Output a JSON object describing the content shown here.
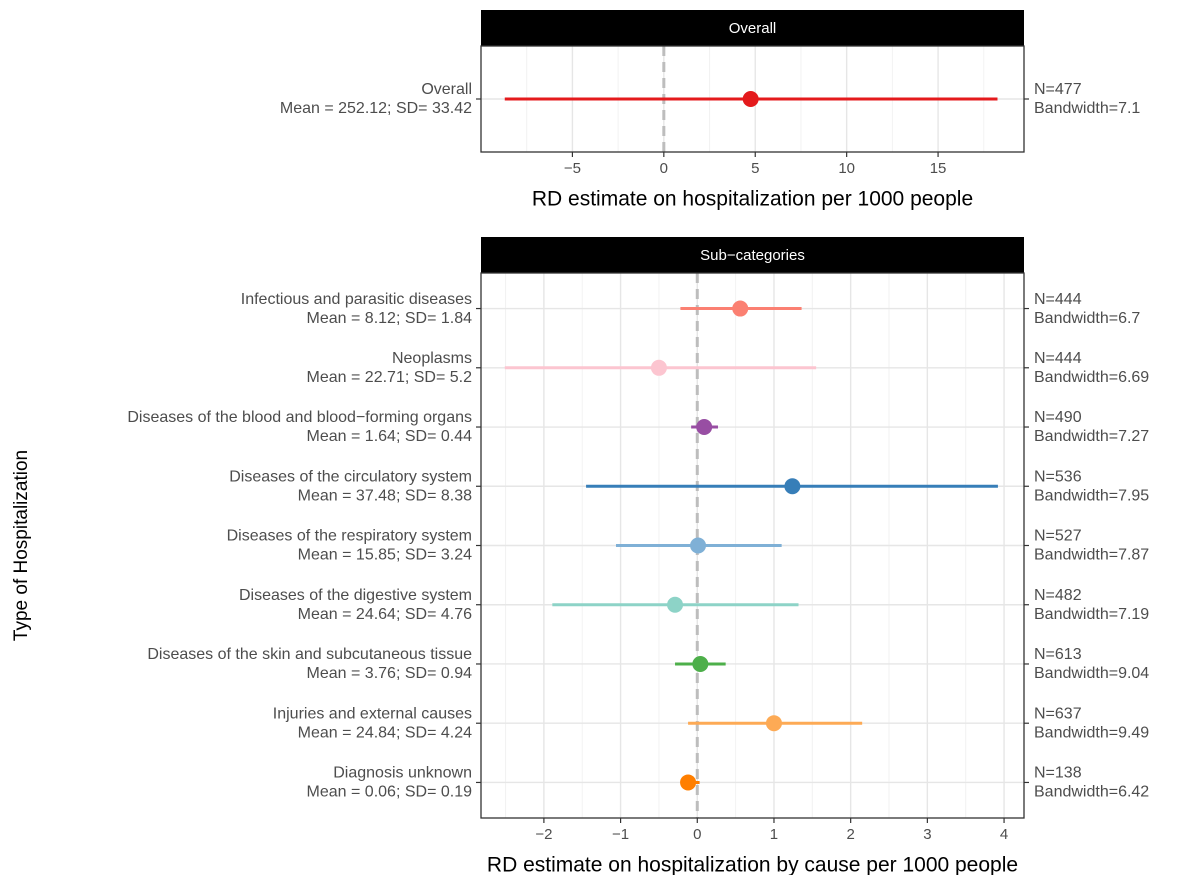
{
  "chart_data": [
    {
      "type": "pointrange",
      "title": "Overall",
      "xlabel": "RD estimate on hospitalization per 1000 people",
      "xlim": [
        -10,
        19.7
      ],
      "xticks": [
        {
          "value": -5,
          "label": "−5"
        },
        0,
        5,
        10,
        15
      ],
      "grid": true,
      "reference_line": 0,
      "rows": [
        {
          "label": "Overall",
          "stats": "Mean = 252.12; SD= 33.42",
          "n": "N=477",
          "bandwidth": "Bandwidth=7.1",
          "color": "#e41a1c",
          "estimate": 4.75,
          "lower": -8.7,
          "upper": 18.25
        }
      ]
    },
    {
      "type": "pointrange",
      "title": "Sub−categories",
      "xlabel": "RD estimate on hospitalization by cause per 1000 people",
      "ylabel": "Type of Hospitalization",
      "xlim": [
        -2.82,
        4.26
      ],
      "xticks": [
        {
          "value": -2,
          "label": "−2"
        },
        {
          "value": -1,
          "label": "−1"
        },
        0,
        1,
        2,
        3,
        4
      ],
      "grid": true,
      "reference_line": 0,
      "rows": [
        {
          "label": "Infectious and parasitic diseases",
          "stats": "Mean = 8.12; SD= 1.84",
          "n": "N=444",
          "bandwidth": "Bandwidth=6.7",
          "color": "#fb8072",
          "estimate": 0.56,
          "lower": -0.22,
          "upper": 1.36
        },
        {
          "label": "Neoplasms",
          "stats": "Mean = 22.71; SD= 5.2",
          "n": "N=444",
          "bandwidth": "Bandwidth=6.69",
          "color": "#fcc5d0",
          "estimate": -0.5,
          "lower": -2.51,
          "upper": 1.55
        },
        {
          "label": "Diseases of the blood and blood−forming organs",
          "stats": "Mean = 1.64; SD= 0.44",
          "n": "N=490",
          "bandwidth": "Bandwidth=7.27",
          "color": "#984ea3",
          "estimate": 0.09,
          "lower": -0.08,
          "upper": 0.27
        },
        {
          "label": "Diseases of the circulatory system",
          "stats": "Mean = 37.48; SD= 8.38",
          "n": "N=536",
          "bandwidth": "Bandwidth=7.95",
          "color": "#377eb8",
          "estimate": 1.24,
          "lower": -1.45,
          "upper": 3.92
        },
        {
          "label": "Diseases of the respiratory system",
          "stats": "Mean = 15.85; SD= 3.24",
          "n": "N=527",
          "bandwidth": "Bandwidth=7.87",
          "color": "#7fb0d6",
          "estimate": 0.01,
          "lower": -1.06,
          "upper": 1.1
        },
        {
          "label": "Diseases of the digestive system",
          "stats": "Mean = 24.64; SD= 4.76",
          "n": "N=482",
          "bandwidth": "Bandwidth=7.19",
          "color": "#8dd3c7",
          "estimate": -0.29,
          "lower": -1.89,
          "upper": 1.32
        },
        {
          "label": "Diseases of the skin and subcutaneous tissue",
          "stats": "Mean = 3.76; SD= 0.94",
          "n": "N=613",
          "bandwidth": "Bandwidth=9.04",
          "color": "#4daf4a",
          "estimate": 0.04,
          "lower": -0.29,
          "upper": 0.37
        },
        {
          "label": "Injuries and external causes",
          "stats": "Mean = 24.84; SD= 4.24",
          "n": "N=637",
          "bandwidth": "Bandwidth=9.49",
          "color": "#fdaa55",
          "estimate": 1.0,
          "lower": -0.12,
          "upper": 2.15
        },
        {
          "label": "Diagnosis unknown",
          "stats": "Mean = 0.06; SD= 0.19",
          "n": "N=138",
          "bandwidth": "Bandwidth=6.42",
          "color": "#ff7f00",
          "estimate": -0.12,
          "lower": -0.21,
          "upper": 0.03
        }
      ]
    }
  ]
}
